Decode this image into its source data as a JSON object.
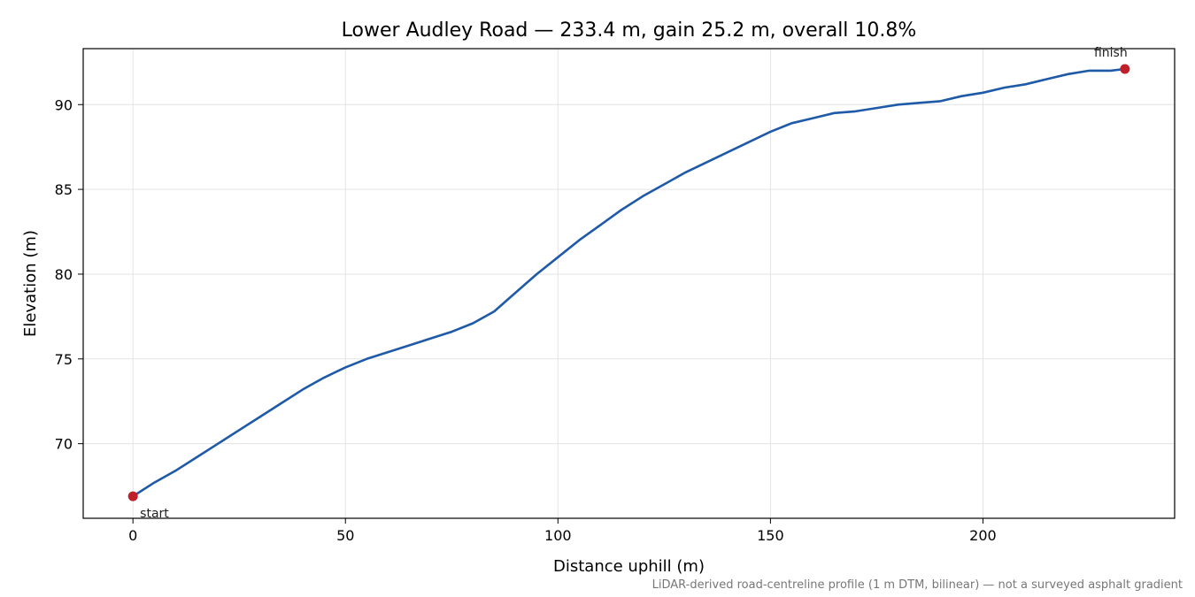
{
  "chart_data": {
    "type": "line",
    "title": "Lower Audley Road — 233.4 m, gain 25.2 m, overall 10.8%",
    "xlabel": "Distance uphill (m)",
    "ylabel": "Elevation (m)",
    "footnote": "LiDAR-derived road-centreline profile (1 m DTM, bilinear) — not a surveyed asphalt gradient",
    "xlim": [
      -11.7,
      245.1
    ],
    "ylim": [
      65.6,
      93.3
    ],
    "xticks": [
      0,
      50,
      100,
      150,
      200
    ],
    "yticks": [
      70,
      75,
      80,
      85,
      90
    ],
    "grid": true,
    "series_color": "#1f5aa8",
    "marker_color": "#c0202a",
    "series": [
      {
        "x": [
          0,
          5,
          10,
          15,
          20,
          25,
          30,
          35,
          40,
          45,
          50,
          55,
          60,
          65,
          70,
          75,
          80,
          85,
          90,
          95,
          100,
          105,
          110,
          115,
          120,
          125,
          130,
          135,
          140,
          145,
          150,
          155,
          160,
          165,
          170,
          175,
          180,
          185,
          190,
          195,
          200,
          205,
          210,
          215,
          220,
          225,
          230,
          233.4
        ],
        "y": [
          66.9,
          67.7,
          68.4,
          69.2,
          70.0,
          70.8,
          71.6,
          72.4,
          73.2,
          73.9,
          74.5,
          75.0,
          75.4,
          75.8,
          76.2,
          76.6,
          77.1,
          77.8,
          78.9,
          80.0,
          81.0,
          82.0,
          82.9,
          83.8,
          84.6,
          85.3,
          86.0,
          86.6,
          87.2,
          87.8,
          88.4,
          88.9,
          89.2,
          89.5,
          89.6,
          89.8,
          90.0,
          90.1,
          90.2,
          90.5,
          90.7,
          91.0,
          91.2,
          91.5,
          91.8,
          92.0,
          92.0,
          92.1
        ]
      }
    ],
    "annotations": [
      {
        "text": "start",
        "x": 0,
        "y": 66.9
      },
      {
        "text": "finish",
        "x": 233.4,
        "y": 92.1
      }
    ]
  }
}
